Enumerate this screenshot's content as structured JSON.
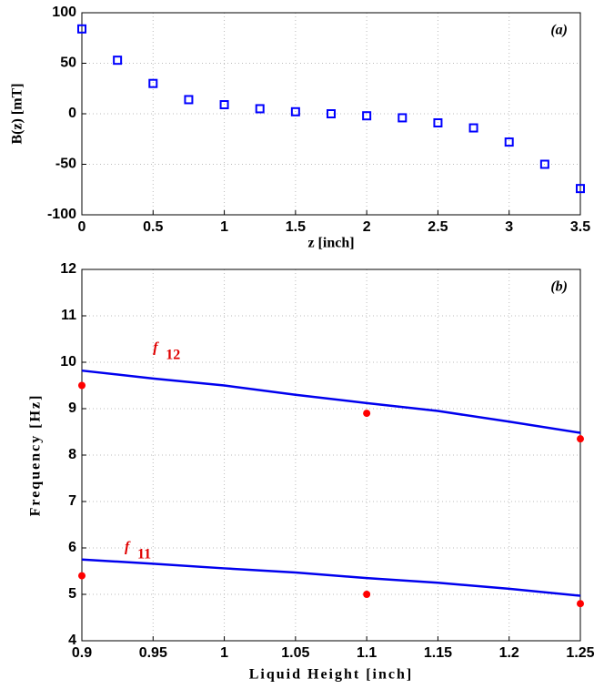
{
  "chart_data": [
    {
      "type": "scatter",
      "panel_label": "(a)",
      "x_label": "z [inch]",
      "y_label": "B(z) [mT]",
      "x": [
        0,
        0.25,
        0.5,
        0.75,
        1,
        1.25,
        1.5,
        1.75,
        2,
        2.25,
        2.5,
        2.75,
        3,
        3.25,
        3.5
      ],
      "values": [
        84,
        53,
        30,
        14,
        9,
        5,
        2,
        0,
        -2,
        -4,
        -9,
        -14,
        -28,
        -50,
        -74
      ],
      "color": "#0000ff",
      "xlim": [
        0,
        3.5
      ],
      "ylim": [
        -100,
        100
      ],
      "xticks": [
        0,
        0.5,
        1,
        1.5,
        2,
        2.5,
        3,
        3.5
      ],
      "yticks": [
        -100,
        -50,
        0,
        50,
        100
      ],
      "grid": true
    },
    {
      "type": "line",
      "panel_label": "(b)",
      "x_label": "Liquid Height [inch]",
      "y_label": "Frequency [Hz]",
      "annotations": [
        {
          "text": "f",
          "sub": "12"
        },
        {
          "text": "f",
          "sub": "11"
        }
      ],
      "series": [
        {
          "mode": "line",
          "color": "#0000ee",
          "x": [
            0.9,
            0.95,
            1,
            1.05,
            1.1,
            1.15,
            1.2,
            1.25
          ],
          "values": [
            9.82,
            9.65,
            9.5,
            9.3,
            9.12,
            8.95,
            8.72,
            8.48
          ]
        },
        {
          "mode": "line",
          "color": "#0000ee",
          "x": [
            0.9,
            0.95,
            1,
            1.05,
            1.1,
            1.15,
            1.2,
            1.25
          ],
          "values": [
            5.75,
            5.66,
            5.56,
            5.47,
            5.35,
            5.25,
            5.12,
            4.97
          ]
        },
        {
          "mode": "markers",
          "color": "#ff0000",
          "x": [
            0.9,
            1.1,
            1.25
          ],
          "values": [
            9.5,
            8.9,
            8.35
          ]
        },
        {
          "mode": "markers",
          "color": "#ff0000",
          "x": [
            0.9,
            1.1,
            1.25
          ],
          "values": [
            5.4,
            5.0,
            4.8
          ]
        }
      ],
      "xlim": [
        0.9,
        1.25
      ],
      "ylim": [
        4,
        12
      ],
      "xticks": [
        0.9,
        0.95,
        1,
        1.05,
        1.1,
        1.15,
        1.2,
        1.25
      ],
      "yticks": [
        4,
        5,
        6,
        7,
        8,
        9,
        10,
        11,
        12
      ],
      "grid": true
    }
  ]
}
